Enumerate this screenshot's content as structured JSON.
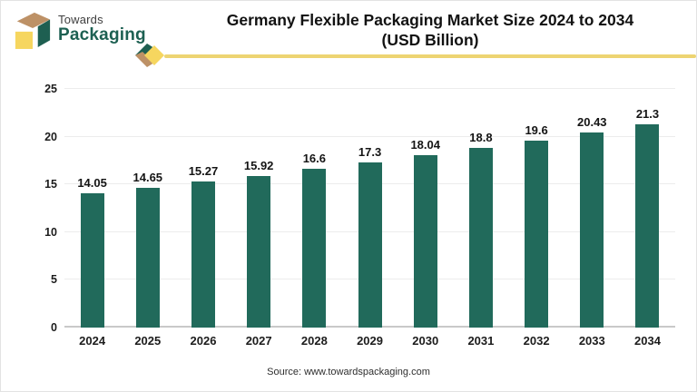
{
  "header": {
    "logo": {
      "top": "Towards",
      "bottom": "Packaging"
    },
    "title_line1": "Germany Flexible Packaging Market Size 2024 to 2034",
    "title_line2": "(USD Billion)"
  },
  "footer": {
    "source": "Source: www.towardspackaging.com"
  },
  "colors": {
    "bar": "#216a5b",
    "accent_line": "#edd472",
    "logo_green": "#1e5f51",
    "logo_tan": "#bd9166",
    "logo_yellow": "#f6d65f",
    "gridline": "#ececec",
    "baseline": "#c9c9c9"
  },
  "chart_data": {
    "type": "bar",
    "title": "Germany Flexible Packaging Market Size 2024 to 2034 (USD Billion)",
    "categories": [
      "2024",
      "2025",
      "2026",
      "2027",
      "2028",
      "2029",
      "2030",
      "2031",
      "2032",
      "2033",
      "2034"
    ],
    "values": [
      14.05,
      14.65,
      15.27,
      15.92,
      16.6,
      17.3,
      18.04,
      18.8,
      19.6,
      20.43,
      21.3
    ],
    "value_labels": [
      "14.05",
      "14.65",
      "15.27",
      "15.92",
      "16.6",
      "17.3",
      "18.04",
      "18.8",
      "19.6",
      "20.43",
      "21.3"
    ],
    "xlabel": "",
    "ylabel": "",
    "ylim": [
      0,
      25
    ],
    "yticks": [
      0,
      5,
      10,
      15,
      20,
      25
    ],
    "grid": true,
    "legend": false,
    "source": "Source: www.towardspackaging.com"
  }
}
